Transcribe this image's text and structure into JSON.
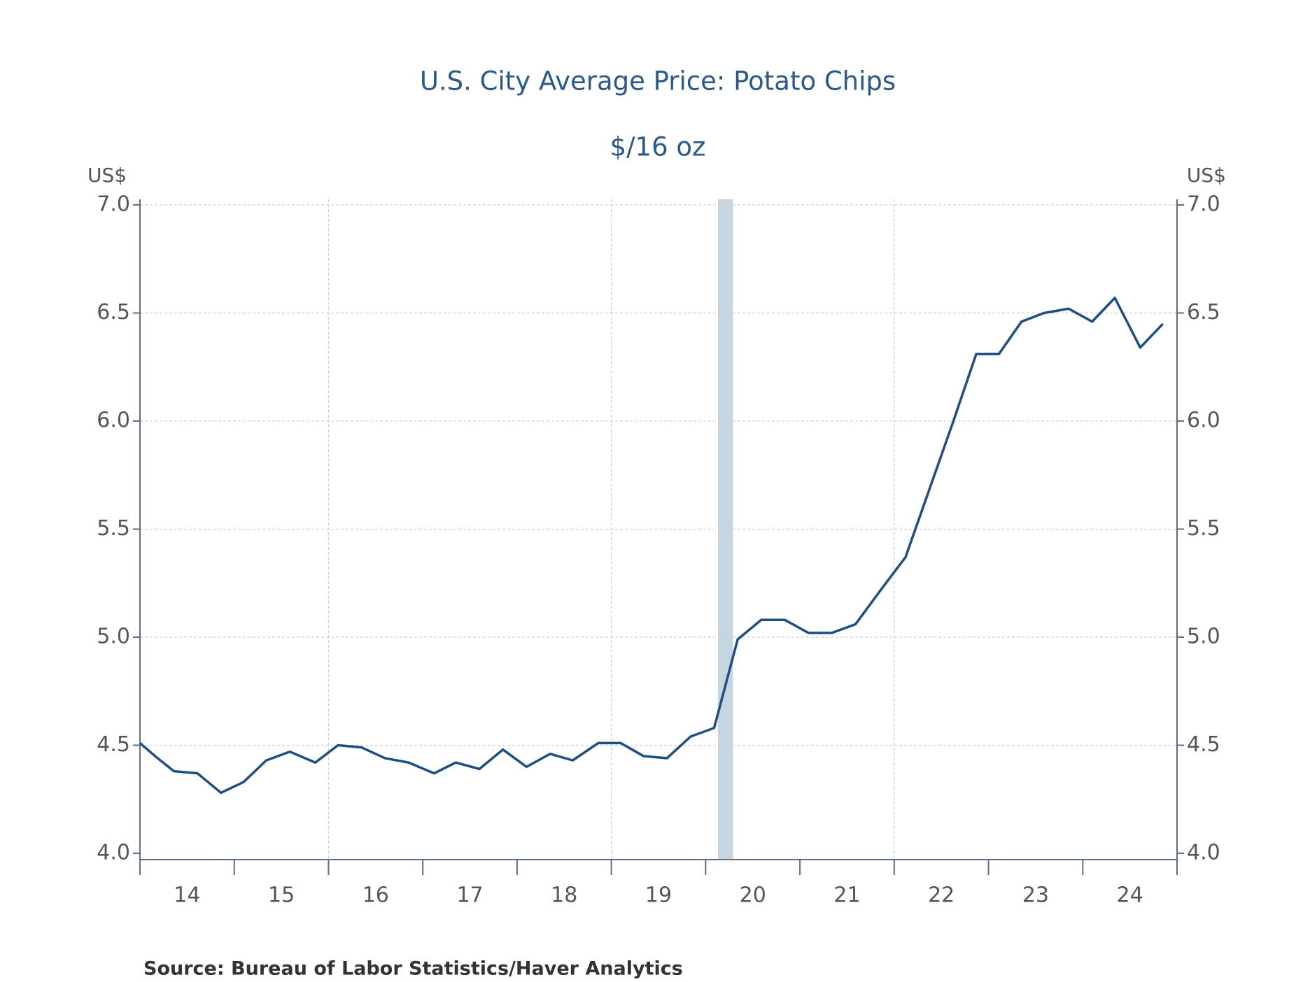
{
  "chart_data": {
    "type": "line",
    "title": "U.S. City Average Price: Potato Chips",
    "subtitle": "$/16 oz",
    "y_label": "US$",
    "y2_label": "US$",
    "source": "Source:  Bureau of Labor Statistics/Haver Analytics",
    "x": [
      2014.0,
      2014.16,
      2014.36,
      2014.61,
      2014.86,
      2015.1,
      2015.34,
      2015.59,
      2015.86,
      2016.1,
      2016.35,
      2016.6,
      2016.85,
      2017.12,
      2017.35,
      2017.6,
      2017.85,
      2018.1,
      2018.35,
      2018.59,
      2018.86,
      2019.1,
      2019.34,
      2019.59,
      2019.84,
      2020.09,
      2020.34,
      2020.59,
      2020.84,
      2021.09,
      2021.34,
      2021.59,
      2021.86,
      2022.12,
      2022.37,
      2022.62,
      2022.87,
      2023.11,
      2023.35,
      2023.59,
      2023.85,
      2024.1,
      2024.34,
      2024.61,
      2024.85
    ],
    "series": [
      {
        "name": "Potato Chips",
        "color": "#1f4e85",
        "values": [
          4.51,
          4.45,
          4.38,
          4.37,
          4.28,
          4.33,
          4.43,
          4.47,
          4.42,
          4.5,
          4.49,
          4.44,
          4.42,
          4.37,
          4.42,
          4.39,
          4.48,
          4.4,
          4.46,
          4.43,
          4.51,
          4.51,
          4.45,
          4.44,
          4.54,
          4.58,
          4.99,
          5.08,
          5.08,
          5.02,
          5.02,
          5.06,
          5.22,
          5.37,
          5.68,
          5.99,
          6.31,
          6.31,
          6.46,
          6.5,
          6.52,
          6.46,
          6.57,
          6.34,
          6.45
        ]
      }
    ],
    "recession": [
      2020.13,
      2020.29
    ],
    "recession_color": "#c5d6e1",
    "xlim": [
      2014,
      2025
    ],
    "xticks": [
      2014,
      2015,
      2016,
      2017,
      2018,
      2019,
      2020,
      2021,
      2022,
      2023,
      2024,
      2025
    ],
    "xtick_labels": [
      {
        "value": 2014.5,
        "label": "14"
      },
      {
        "value": 2015.5,
        "label": "15"
      },
      {
        "value": 2016.5,
        "label": "16"
      },
      {
        "value": 2017.5,
        "label": "17"
      },
      {
        "value": 2018.5,
        "label": "18"
      },
      {
        "value": 2019.5,
        "label": "19"
      },
      {
        "value": 2020.5,
        "label": "20"
      },
      {
        "value": 2021.5,
        "label": "21"
      },
      {
        "value": 2022.5,
        "label": "22"
      },
      {
        "value": 2023.5,
        "label": "23"
      },
      {
        "value": 2024.5,
        "label": "24"
      }
    ],
    "xgrid": [
      2016,
      2019,
      2022
    ],
    "ylim": [
      4,
      7
    ],
    "yticks": [
      {
        "value": 4,
        "label": "4.0"
      },
      {
        "value": 4.5,
        "label": "4.5"
      },
      {
        "value": 5,
        "label": "5.0"
      },
      {
        "value": 5.5,
        "label": "5.5"
      },
      {
        "value": 6,
        "label": "6.0"
      },
      {
        "value": 6.5,
        "label": "6.5"
      },
      {
        "value": 7,
        "label": "7.0"
      }
    ],
    "grid": true
  }
}
